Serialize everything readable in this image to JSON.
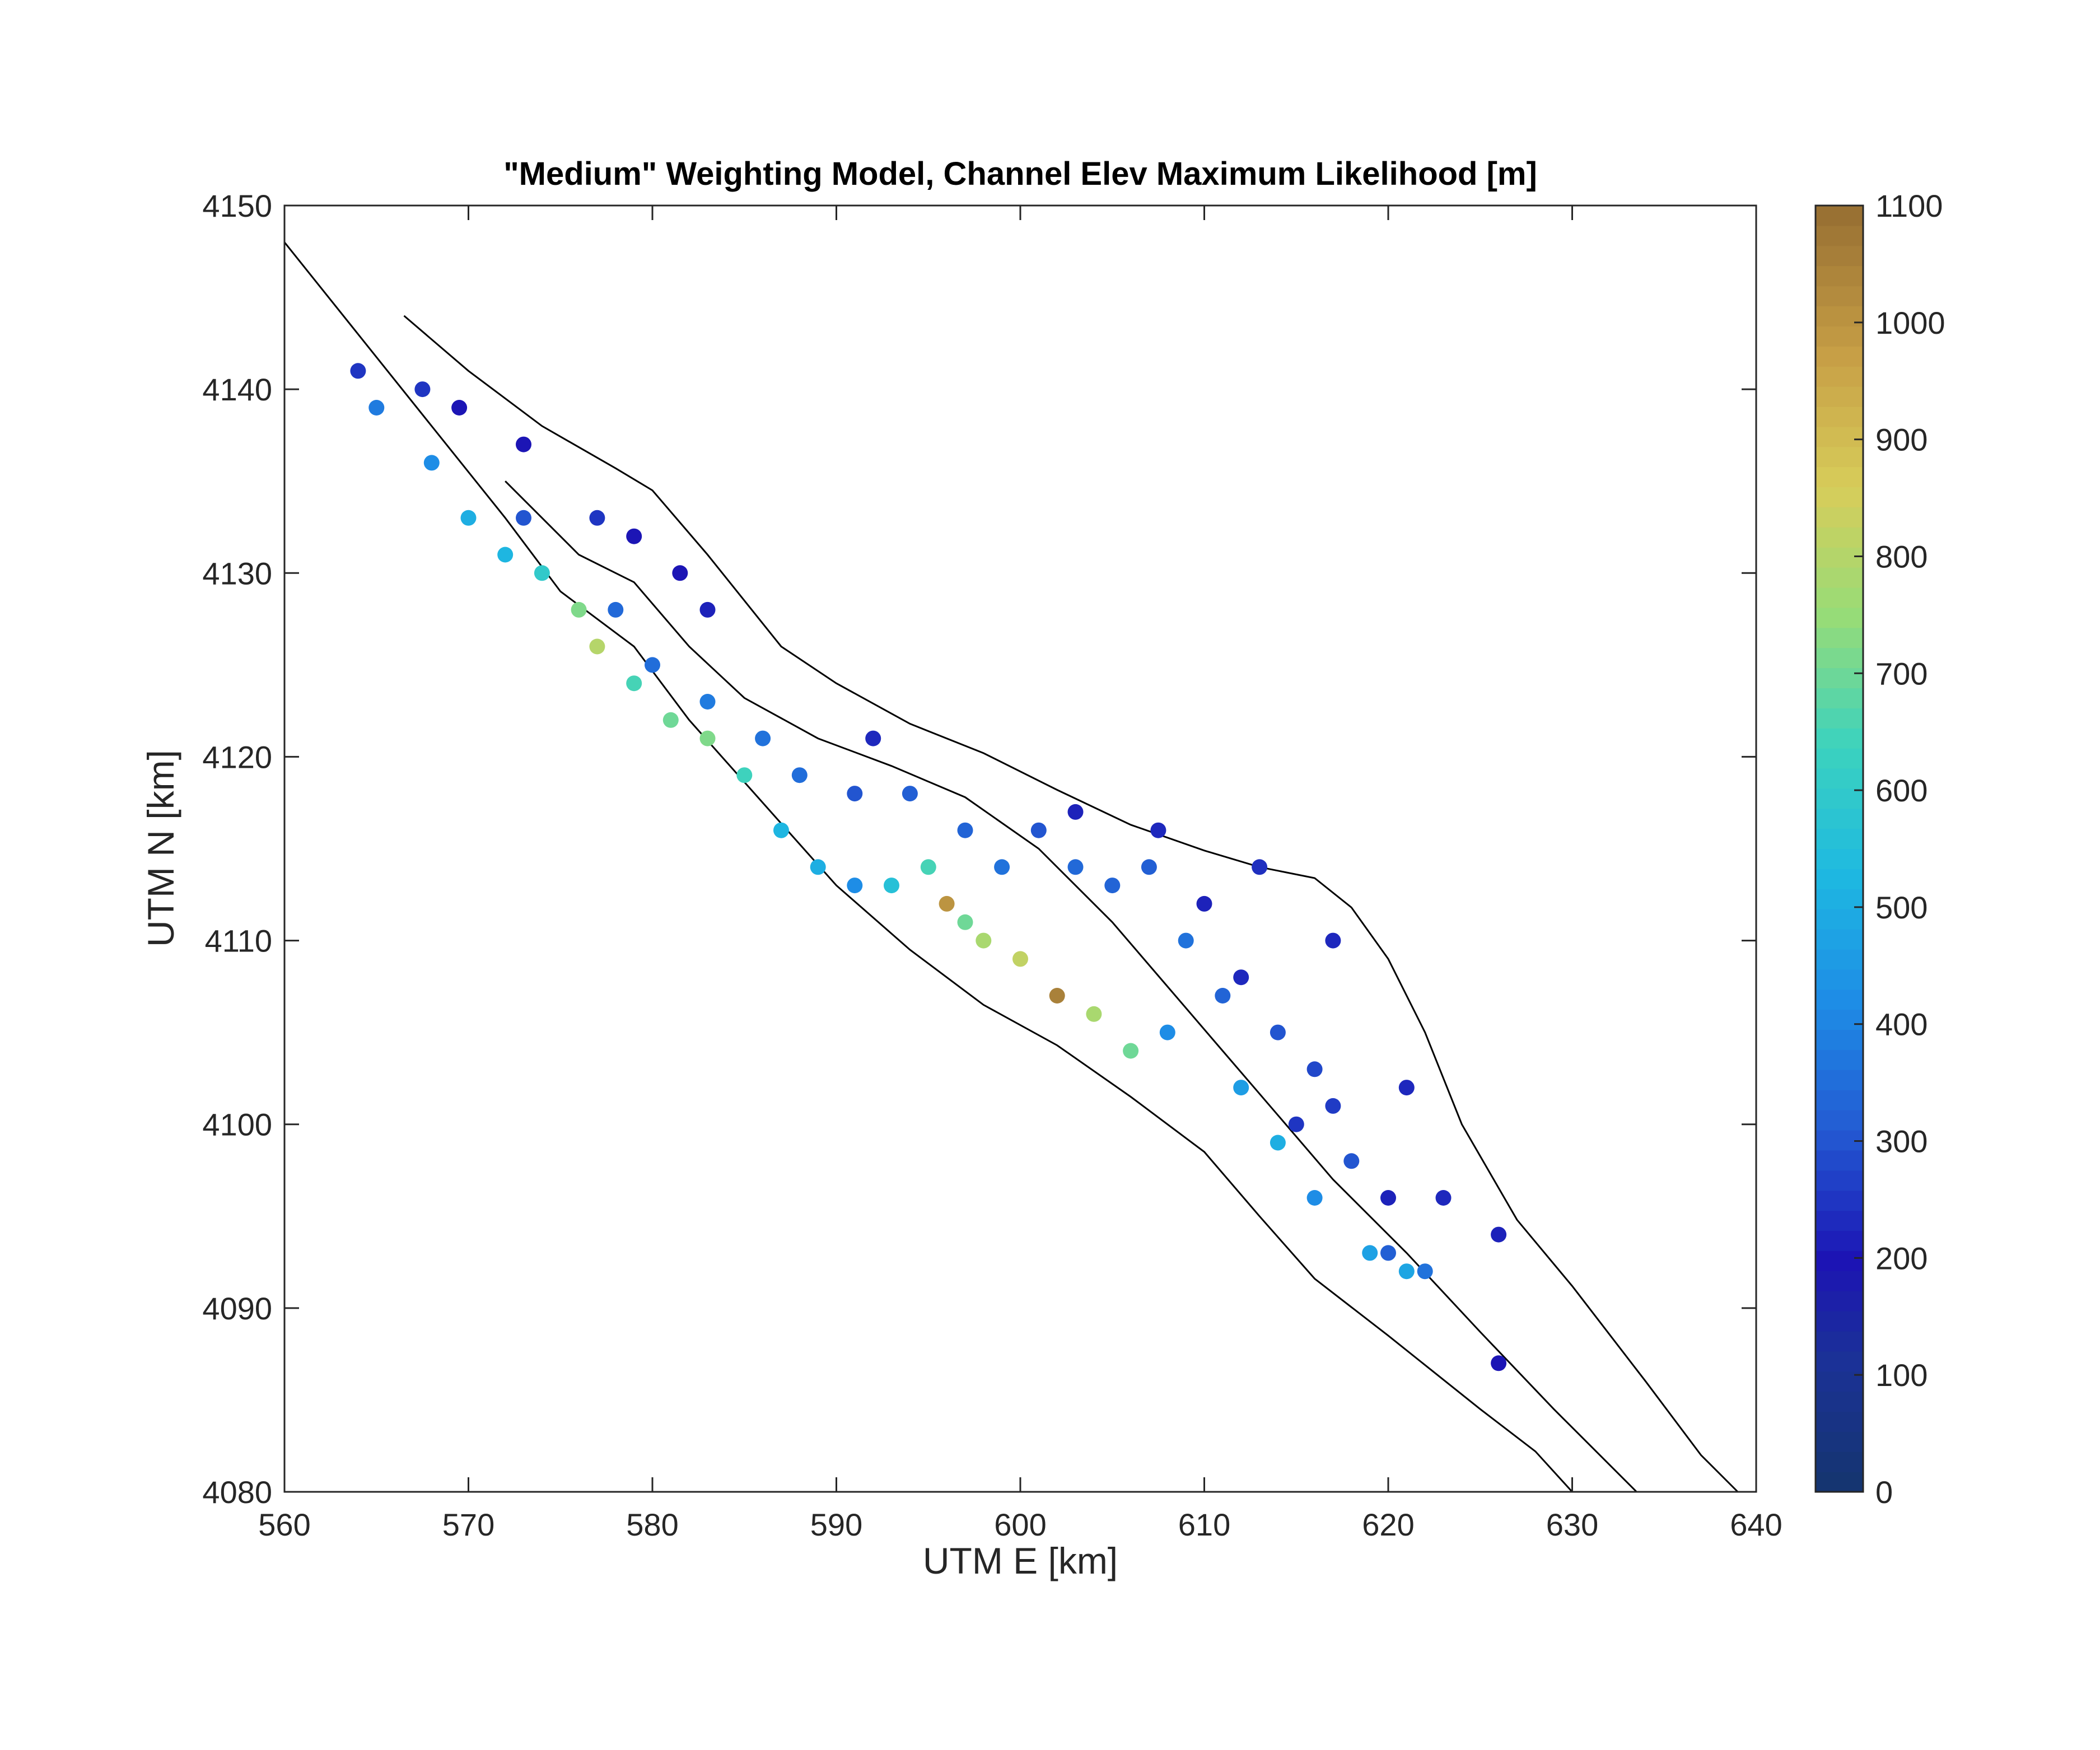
{
  "chart_data": {
    "type": "scatter",
    "title": "\"Medium\" Weighting Model, Channel Elev Maximum Likelihood [m]",
    "xlabel": "UTM E [km]",
    "ylabel": "UTM N [km]",
    "xlim": [
      560,
      640
    ],
    "ylim": [
      4080,
      4150
    ],
    "xticks": [
      "560",
      "570",
      "580",
      "590",
      "600",
      "610",
      "620",
      "630",
      "640"
    ],
    "yticks": [
      "4080",
      "4090",
      "4100",
      "4110",
      "4120",
      "4130",
      "4140",
      "4150"
    ],
    "colorbar": {
      "lim": [
        0,
        1100
      ],
      "ticks": [
        "0",
        "100",
        "200",
        "300",
        "400",
        "500",
        "600",
        "700",
        "800",
        "900",
        "1000",
        "1100"
      ],
      "colormap": "parula"
    },
    "grid": false,
    "boundary_lines": [
      {
        "name": "",
        "points": [
          [
            560,
            4148
          ],
          [
            564,
            4143
          ],
          [
            568,
            4138
          ],
          [
            572,
            4133
          ],
          [
            575,
            4129
          ],
          [
            579,
            4126
          ],
          [
            582,
            4122
          ],
          [
            586,
            4117.5
          ],
          [
            590,
            4113
          ],
          [
            594,
            4109.5
          ],
          [
            598,
            4106.5
          ],
          [
            602,
            4104.3
          ],
          [
            606,
            4101.5
          ],
          [
            610,
            4098.5
          ],
          [
            613,
            4095
          ],
          [
            616,
            4091.6
          ],
          [
            620,
            4088.5
          ],
          [
            625,
            4084.5
          ],
          [
            628,
            4082.2
          ],
          [
            630,
            4080
          ]
        ]
      },
      {
        "name": "",
        "points": [
          [
            566.5,
            4144
          ],
          [
            570,
            4141
          ],
          [
            574,
            4138
          ],
          [
            578,
            4135.7
          ],
          [
            580,
            4134.5
          ],
          [
            583,
            4131
          ],
          [
            587,
            4126
          ],
          [
            590,
            4124
          ],
          [
            594,
            4121.8
          ],
          [
            598,
            4120.2
          ],
          [
            602,
            4118.2
          ],
          [
            606,
            4116.3
          ],
          [
            610,
            4114.9
          ],
          [
            613,
            4114
          ],
          [
            616,
            4113.4
          ],
          [
            618,
            4111.8
          ],
          [
            620,
            4109
          ],
          [
            622,
            4105
          ],
          [
            624,
            4100
          ],
          [
            627,
            4094.8
          ],
          [
            630,
            4091.2
          ],
          [
            634,
            4086
          ],
          [
            637,
            4082
          ],
          [
            639,
            4080
          ]
        ]
      },
      {
        "name": "",
        "points": [
          [
            572,
            4135
          ],
          [
            576,
            4131
          ],
          [
            579,
            4129.5
          ],
          [
            582,
            4126
          ],
          [
            585,
            4123.2
          ],
          [
            589,
            4121
          ],
          [
            593,
            4119.5
          ],
          [
            597,
            4117.8
          ],
          [
            601,
            4115
          ],
          [
            605,
            4111
          ],
          [
            608,
            4107.5
          ],
          [
            611,
            4104
          ],
          [
            614,
            4100.5
          ],
          [
            617,
            4097
          ],
          [
            621,
            4093
          ],
          [
            625,
            4088.7
          ],
          [
            629,
            4084.5
          ],
          [
            633.5,
            4080
          ]
        ]
      }
    ],
    "series": [
      {
        "name": "",
        "points": [
          [
            564,
            4141,
            250
          ],
          [
            567.5,
            4140,
            250
          ],
          [
            569.5,
            4139,
            200
          ],
          [
            573,
            4137,
            200
          ],
          [
            577,
            4133,
            250
          ],
          [
            579,
            4132,
            200
          ],
          [
            581.5,
            4130,
            200
          ],
          [
            583,
            4128,
            220
          ],
          [
            592,
            4121,
            230
          ],
          [
            603,
            4117,
            220
          ],
          [
            607.5,
            4116,
            230
          ],
          [
            613,
            4114,
            240
          ],
          [
            617,
            4110,
            230
          ],
          [
            621,
            4102,
            230
          ],
          [
            615,
            4100,
            250
          ],
          [
            620,
            4096,
            220
          ],
          [
            623,
            4096,
            230
          ],
          [
            626,
            4094,
            220
          ],
          [
            626,
            4087,
            200
          ],
          [
            610,
            4112,
            220
          ],
          [
            612,
            4108,
            230
          ]
        ]
      },
      {
        "name": "",
        "points": [
          [
            565,
            4139,
            380
          ],
          [
            568,
            4136,
            420
          ],
          [
            570,
            4133,
            500
          ],
          [
            572,
            4131,
            520
          ],
          [
            574,
            4130,
            600
          ],
          [
            576,
            4128,
            720
          ],
          [
            577,
            4126,
            800
          ],
          [
            579,
            4124,
            650
          ],
          [
            581,
            4122,
            700
          ],
          [
            583,
            4121,
            720
          ],
          [
            585,
            4119,
            640
          ],
          [
            587,
            4116,
            520
          ],
          [
            589,
            4114,
            500
          ],
          [
            591,
            4113,
            420
          ],
          [
            593,
            4113,
            560
          ],
          [
            595,
            4114,
            650
          ],
          [
            596,
            4112,
            1000
          ],
          [
            597,
            4111,
            700
          ],
          [
            598,
            4110,
            780
          ],
          [
            600,
            4109,
            820
          ],
          [
            602,
            4107,
            1050
          ],
          [
            604,
            4106,
            780
          ],
          [
            606,
            4104,
            700
          ],
          [
            608,
            4105,
            420
          ],
          [
            612,
            4102,
            460
          ],
          [
            614,
            4099,
            500
          ],
          [
            616,
            4096,
            420
          ],
          [
            619,
            4093,
            470
          ],
          [
            621,
            4092,
            480
          ]
        ]
      },
      {
        "name": "",
        "points": [
          [
            573,
            4133,
            300
          ],
          [
            578,
            4128,
            340
          ],
          [
            580,
            4125,
            350
          ],
          [
            583,
            4123,
            380
          ],
          [
            586,
            4121,
            360
          ],
          [
            588,
            4119,
            350
          ],
          [
            591,
            4118,
            300
          ],
          [
            594,
            4118,
            320
          ],
          [
            597,
            4116,
            330
          ],
          [
            599,
            4114,
            360
          ],
          [
            601,
            4116,
            300
          ],
          [
            603,
            4114,
            340
          ],
          [
            605,
            4113,
            330
          ],
          [
            607,
            4114,
            320
          ],
          [
            609,
            4110,
            360
          ],
          [
            611,
            4107,
            330
          ],
          [
            614,
            4105,
            300
          ],
          [
            616,
            4103,
            280
          ],
          [
            617,
            4101,
            260
          ],
          [
            618,
            4098,
            300
          ],
          [
            620,
            4093,
            320
          ],
          [
            622,
            4092,
            360
          ]
        ]
      }
    ]
  }
}
